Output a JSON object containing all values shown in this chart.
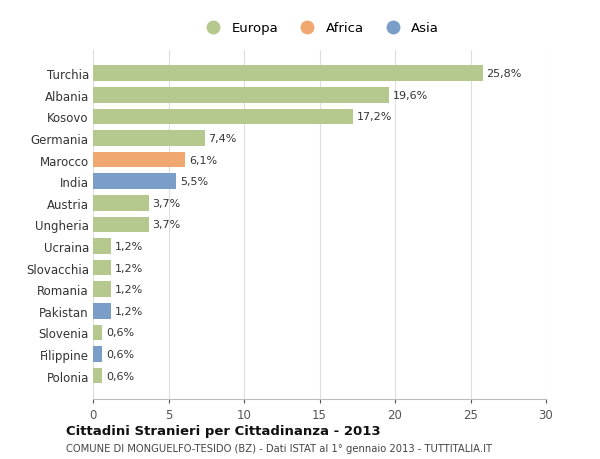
{
  "categories": [
    "Turchia",
    "Albania",
    "Kosovo",
    "Germania",
    "Marocco",
    "India",
    "Austria",
    "Ungheria",
    "Ucraina",
    "Slovacchia",
    "Romania",
    "Pakistan",
    "Slovenia",
    "Filippine",
    "Polonia"
  ],
  "values": [
    25.8,
    19.6,
    17.2,
    7.4,
    6.1,
    5.5,
    3.7,
    3.7,
    1.2,
    1.2,
    1.2,
    1.2,
    0.6,
    0.6,
    0.6
  ],
  "labels": [
    "25,8%",
    "19,6%",
    "17,2%",
    "7,4%",
    "6,1%",
    "5,5%",
    "3,7%",
    "3,7%",
    "1,2%",
    "1,2%",
    "1,2%",
    "1,2%",
    "0,6%",
    "0,6%",
    "0,6%"
  ],
  "continents": [
    "Europa",
    "Europa",
    "Europa",
    "Europa",
    "Africa",
    "Asia",
    "Europa",
    "Europa",
    "Europa",
    "Europa",
    "Europa",
    "Asia",
    "Europa",
    "Asia",
    "Europa"
  ],
  "colors": {
    "Europa": "#b5c98e",
    "Africa": "#f0a870",
    "Asia": "#7b9ec8"
  },
  "xlim": [
    0,
    30
  ],
  "xticks": [
    0,
    5,
    10,
    15,
    20,
    25,
    30
  ],
  "title": "Cittadini Stranieri per Cittadinanza - 2013",
  "subtitle": "COMUNE DI MONGUELFO-TESIDO (BZ) - Dati ISTAT al 1° gennaio 2013 - TUTTITALIA.IT",
  "background_color": "#ffffff",
  "grid_color": "#dddddd",
  "bar_height": 0.72,
  "label_fontsize": 8.0,
  "ytick_fontsize": 8.5,
  "xtick_fontsize": 8.5
}
